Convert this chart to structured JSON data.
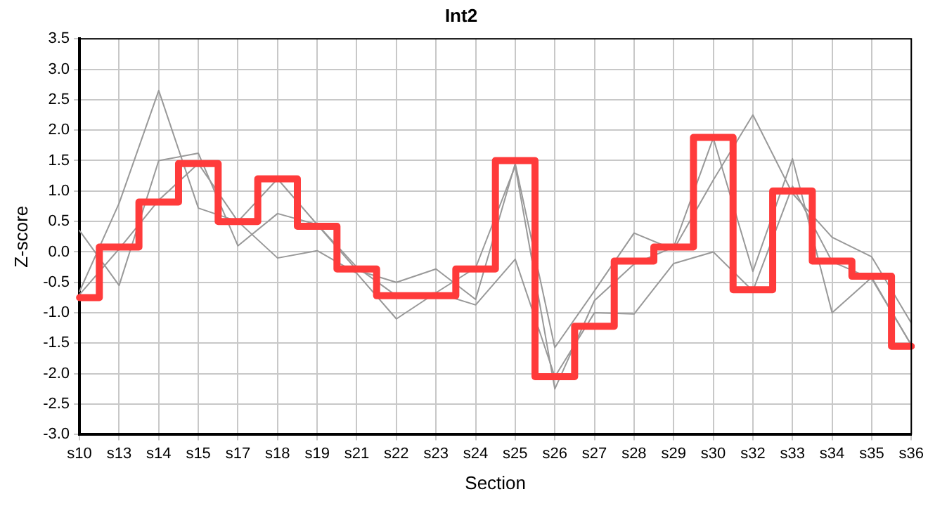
{
  "chart_data": {
    "type": "line",
    "title": "Int2",
    "xlabel": "Section",
    "ylabel": "Z-score",
    "categories": [
      "s10",
      "s13",
      "s14",
      "s15",
      "s17",
      "s18",
      "s19",
      "s21",
      "s22",
      "s23",
      "s24",
      "s25",
      "s26",
      "s27",
      "s28",
      "s29",
      "s30",
      "s32",
      "s33",
      "s34",
      "s35",
      "s36"
    ],
    "series": [
      {
        "type": "line",
        "color": "#999999",
        "values": [
          0.35,
          -0.55,
          1.5,
          1.62,
          0.1,
          0.63,
          0.45,
          -0.3,
          -0.5,
          -0.28,
          -0.78,
          1.45,
          -1.57,
          -0.64,
          0.31,
          0.04,
          1.18,
          2.25,
          0.96,
          0.24,
          -0.08,
          -1.17
        ]
      },
      {
        "type": "line",
        "color": "#999999",
        "values": [
          -0.65,
          0.8,
          2.65,
          0.72,
          0.5,
          1.2,
          0.45,
          -0.25,
          -0.72,
          -0.67,
          -0.26,
          1.41,
          -2.25,
          -0.8,
          -0.2,
          0.08,
          1.87,
          -0.32,
          1.53,
          -1.0,
          -0.42,
          -1.53
        ]
      },
      {
        "type": "line",
        "color": "#999999",
        "values": [
          -0.7,
          0.05,
          0.85,
          1.45,
          0.5,
          -0.1,
          0.02,
          -0.35,
          -1.1,
          -0.67,
          -0.87,
          -0.12,
          -2.05,
          -1.0,
          -1.02,
          -0.19,
          0.0,
          -0.64,
          1.08,
          -0.16,
          -0.44,
          -1.53
        ]
      },
      {
        "type": "step",
        "color": "#ff3b3b",
        "values": [
          -0.75,
          0.08,
          0.82,
          1.45,
          0.5,
          1.2,
          0.42,
          -0.28,
          -0.72,
          -0.72,
          -0.28,
          1.5,
          -2.05,
          -1.22,
          -0.15,
          0.08,
          1.88,
          -0.62,
          1.0,
          -0.15,
          -0.4,
          -1.55
        ]
      }
    ],
    "ylim": [
      -3.0,
      3.5
    ],
    "yticks": [
      {
        "value": -3,
        "label": "-3.0"
      },
      -2.5,
      {
        "value": -2,
        "label": "-2.0"
      },
      -1.5,
      {
        "value": -1,
        "label": "-1.0"
      },
      -0.5,
      {
        "value": 0,
        "label": "0.0"
      },
      0.5,
      {
        "value": 1,
        "label": "1.0"
      },
      1.5,
      {
        "value": 2,
        "label": "2.0"
      },
      2.5,
      {
        "value": 3,
        "label": "3.0"
      },
      3.5
    ],
    "grid": true,
    "legend": false,
    "marker": "none",
    "line_style": "solid"
  }
}
